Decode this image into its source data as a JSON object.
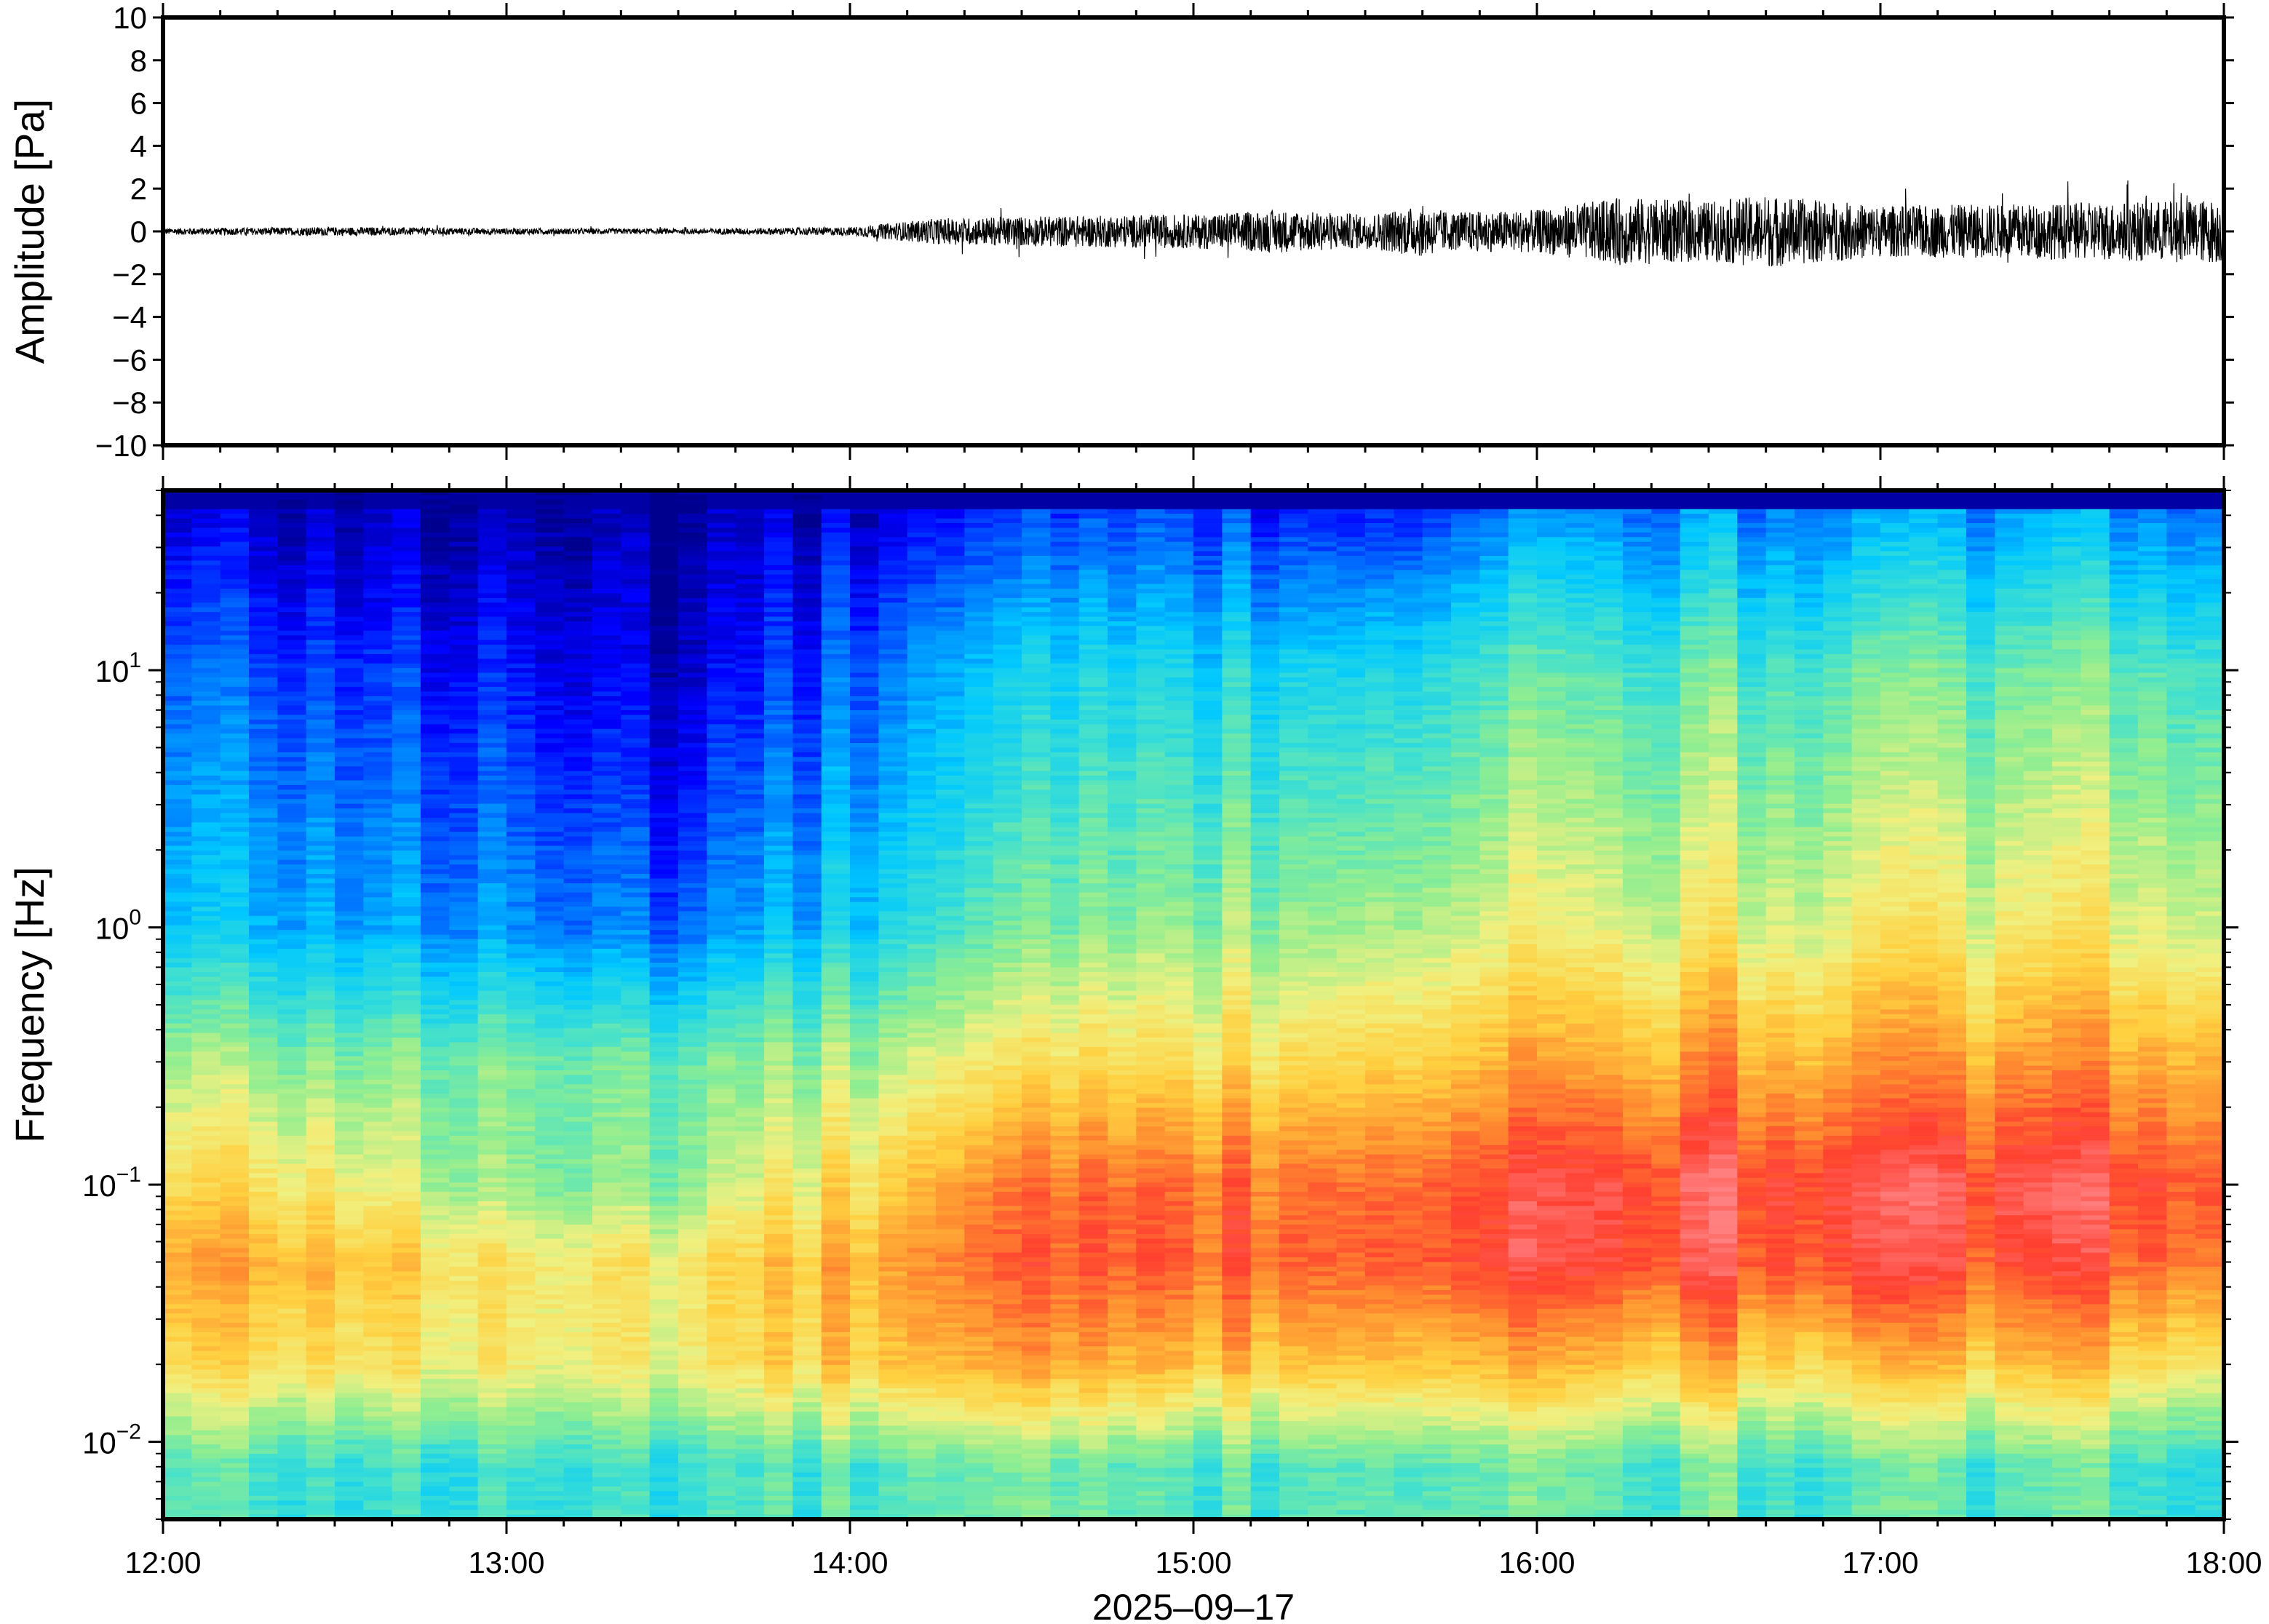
{
  "chart_data": [
    {
      "type": "line",
      "title": "",
      "xlabel": "",
      "ylabel": "Amplitude [Pa]",
      "xlim": [
        "2025-09-17 12:00",
        "2025-09-17 18:00"
      ],
      "ylim": [
        -10,
        10
      ],
      "y_ticks": [
        10,
        8,
        6,
        4,
        2,
        0,
        -2,
        -4,
        -6,
        -8,
        -10
      ],
      "y_tick_labels": [
        "10",
        "8",
        "6",
        "4",
        "2",
        "0",
        "−2",
        "−4",
        "−6",
        "−8",
        "−10"
      ],
      "grid": false,
      "series": [
        {
          "color": "#000000",
          "envelope_times": [
            "12:00",
            "12:30",
            "13:00",
            "13:30",
            "14:00",
            "14:15",
            "14:30",
            "15:00",
            "15:15",
            "15:30",
            "15:40",
            "15:45",
            "16:00",
            "16:15",
            "16:30",
            "16:40",
            "17:00",
            "17:30",
            "18:00"
          ],
          "envelope_amplitude_pa": [
            0.15,
            0.2,
            0.15,
            0.12,
            0.2,
            0.6,
            0.7,
            0.8,
            1.0,
            0.8,
            1.2,
            0.9,
            1.0,
            1.6,
            1.4,
            1.7,
            1.2,
            1.3,
            1.5
          ]
        }
      ]
    },
    {
      "type": "heatmap",
      "title": "",
      "xlabel": "2025‒09‒17",
      "ylabel": "Frequency [Hz]",
      "x_tick_labels": [
        "12:00",
        "13:00",
        "14:00",
        "15:00",
        "16:00",
        "17:00",
        "18:00"
      ],
      "xlim": [
        "12:00",
        "18:00"
      ],
      "y_scale": "log",
      "ylim": [
        0.005,
        50
      ],
      "y_ticks": [
        0.01,
        0.1,
        1,
        10
      ],
      "y_tick_labels": [
        {
          "base": "10",
          "exp": "−2"
        },
        {
          "base": "10",
          "exp": "−1"
        },
        {
          "base": "10",
          "exp": "0"
        },
        {
          "base": "10",
          "exp": "1"
        }
      ],
      "colormap": "jet",
      "colormap_stops": [
        "#00008f",
        "#0000ff",
        "#0070ff",
        "#00c8ff",
        "#40e0d0",
        "#90ee90",
        "#f0f080",
        "#ffd040",
        "#ff9030",
        "#ff4030",
        "#ff8080"
      ],
      "time_columns": [
        "12:00",
        "12:30",
        "13:00",
        "13:30",
        "14:00",
        "14:30",
        "15:00",
        "15:30",
        "16:00",
        "16:30",
        "17:00",
        "17:30",
        "18:00"
      ],
      "frequency_rows_hz": [
        40,
        10,
        1,
        0.3,
        0.1,
        0.05,
        0.02,
        0.008
      ],
      "relative_power": [
        [
          0.06,
          0.05,
          0.02,
          0.02,
          0.06,
          0.12,
          0.16,
          0.14,
          0.22,
          0.24,
          0.24,
          0.24,
          0.26
        ],
        [
          0.18,
          0.16,
          0.1,
          0.06,
          0.18,
          0.3,
          0.34,
          0.36,
          0.42,
          0.44,
          0.44,
          0.44,
          0.46
        ],
        [
          0.3,
          0.28,
          0.22,
          0.2,
          0.32,
          0.44,
          0.5,
          0.54,
          0.58,
          0.6,
          0.6,
          0.6,
          0.62
        ],
        [
          0.52,
          0.5,
          0.46,
          0.46,
          0.52,
          0.62,
          0.66,
          0.7,
          0.74,
          0.78,
          0.76,
          0.76,
          0.8
        ],
        [
          0.66,
          0.64,
          0.48,
          0.5,
          0.66,
          0.8,
          0.84,
          0.86,
          0.9,
          0.94,
          0.92,
          0.92,
          0.92
        ],
        [
          0.76,
          0.74,
          0.62,
          0.64,
          0.74,
          0.84,
          0.86,
          0.88,
          0.9,
          0.92,
          0.9,
          0.88,
          0.88
        ],
        [
          0.66,
          0.66,
          0.6,
          0.62,
          0.7,
          0.74,
          0.72,
          0.74,
          0.72,
          0.72,
          0.7,
          0.7,
          0.68
        ],
        [
          0.42,
          0.4,
          0.38,
          0.4,
          0.42,
          0.44,
          0.42,
          0.46,
          0.44,
          0.44,
          0.42,
          0.42,
          0.42
        ]
      ]
    }
  ]
}
